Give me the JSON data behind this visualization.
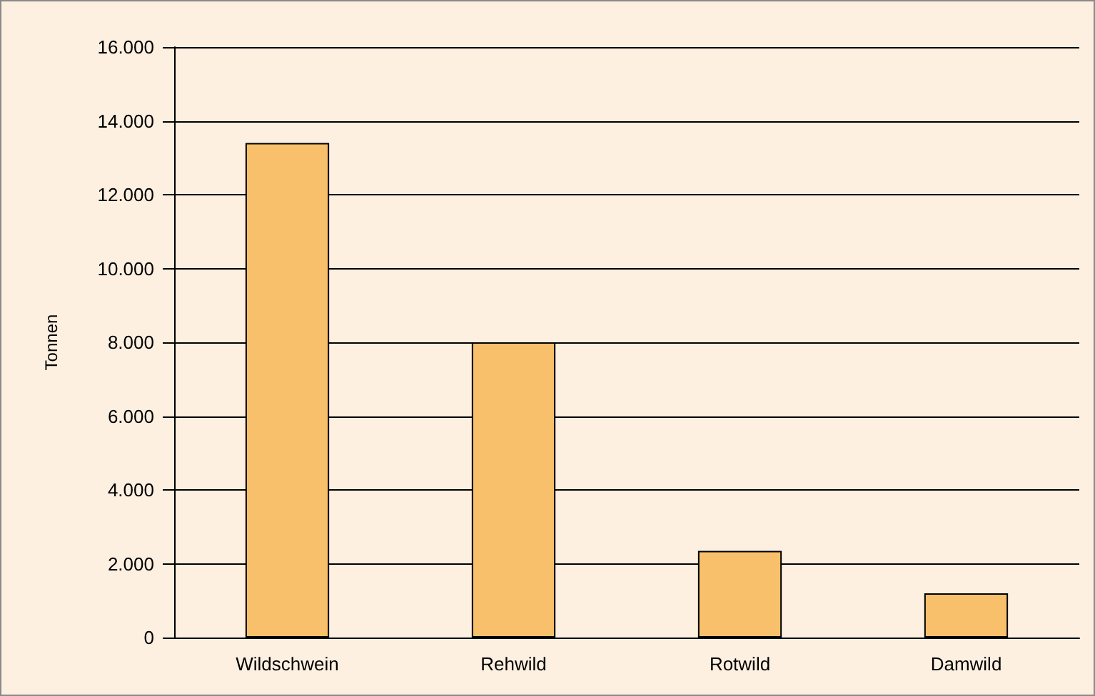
{
  "chart_data": {
    "type": "bar",
    "ylabel": "Tonnen",
    "categories": [
      "Wildschwein",
      "Rehwild",
      "Rotwild",
      "Damwild"
    ],
    "values": [
      13400,
      8000,
      2350,
      1200
    ],
    "color": "#f8c06b",
    "ylim": [
      0,
      16000
    ],
    "yticks": [
      {
        "value": 0,
        "label": "0"
      },
      {
        "value": 2000,
        "label": "2.000"
      },
      {
        "value": 4000,
        "label": "4.000"
      },
      {
        "value": 6000,
        "label": "6.000"
      },
      {
        "value": 8000,
        "label": "8.000"
      },
      {
        "value": 10000,
        "label": "10.000"
      },
      {
        "value": 12000,
        "label": "12.000"
      },
      {
        "value": 14000,
        "label": "14.000"
      },
      {
        "value": 16000,
        "label": "16.000"
      }
    ],
    "grid": "y"
  }
}
